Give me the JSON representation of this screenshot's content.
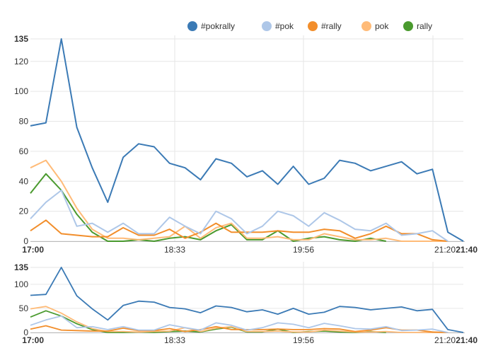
{
  "chart_data": [
    {
      "type": "line",
      "panel": "main",
      "ylim": [
        0,
        135
      ],
      "y_ticks": [
        0,
        20,
        40,
        60,
        80,
        100,
        120,
        135
      ],
      "y_ticks_bold": [
        135
      ],
      "x_ticks": [
        "17:00",
        "18:33",
        "19:56",
        "21:20",
        "21:40"
      ],
      "x_ticks_bold": [
        "17:00",
        "21:40"
      ],
      "legend_position": "top-right",
      "series": [
        {
          "name": "#pokrally",
          "color": "#3b7ab5",
          "values": [
            77,
            79,
            135,
            76,
            49,
            26,
            56,
            65,
            63,
            52,
            49,
            41,
            55,
            52,
            43,
            47,
            38,
            50,
            38,
            42,
            54,
            52,
            47,
            50,
            53,
            45,
            48,
            6,
            0
          ]
        },
        {
          "name": "#pok",
          "color": "#aec7e8",
          "values": [
            15,
            26,
            34,
            10,
            12,
            6,
            12,
            5,
            5,
            16,
            10,
            5,
            20,
            15,
            5,
            10,
            20,
            17,
            10,
            19,
            14,
            8,
            7,
            12,
            4,
            5,
            7,
            0,
            null
          ]
        },
        {
          "name": "#rally",
          "color": "#f28e2b",
          "values": [
            7,
            14,
            5,
            4,
            3,
            3,
            9,
            4,
            4,
            8,
            2,
            6,
            12,
            6,
            6,
            6,
            7,
            6,
            6,
            8,
            7,
            2,
            5,
            10,
            5,
            5,
            1,
            0,
            null
          ]
        },
        {
          "name": "pok",
          "color": "#ffbb78",
          "values": [
            49,
            54,
            40,
            22,
            8,
            2,
            2,
            1,
            2,
            3,
            10,
            2,
            9,
            12,
            2,
            2,
            3,
            1,
            1,
            5,
            3,
            1,
            1,
            2,
            0,
            0,
            0,
            0,
            null
          ]
        },
        {
          "name": "rally",
          "color": "#4a9a2e",
          "values": [
            32,
            45,
            34,
            18,
            6,
            0,
            0,
            1,
            0,
            2,
            3,
            1,
            7,
            11,
            1,
            1,
            7,
            0,
            2,
            3,
            1,
            0,
            2,
            0,
            null,
            null,
            null,
            null,
            null
          ]
        }
      ]
    },
    {
      "type": "line",
      "panel": "overview",
      "ylim": [
        0,
        135
      ],
      "y_ticks": [
        0,
        50,
        100,
        135
      ],
      "y_ticks_bold": [
        135
      ],
      "x_ticks": [
        "17:00",
        "18:33",
        "19:56",
        "21:20",
        "21:40"
      ],
      "x_ticks_bold": [
        "17:00",
        "21:40"
      ],
      "series_ref": "main"
    }
  ]
}
